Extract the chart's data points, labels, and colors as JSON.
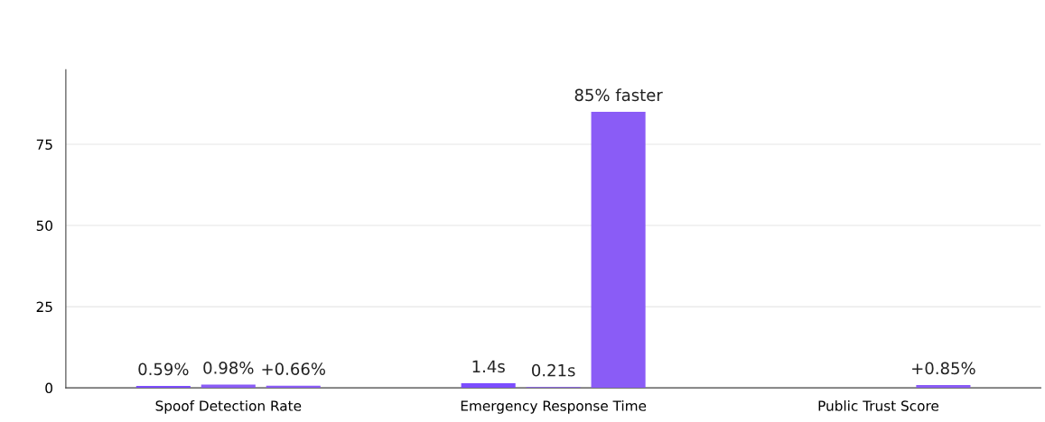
{
  "chart_data": {
    "type": "bar",
    "categories": [
      "Spoof Detection Rate",
      "Emergency Response Time",
      "Public Trust Score"
    ],
    "series": [
      {
        "color": "#7c4dff",
        "values": [
          0.59,
          1.4,
          null
        ],
        "value_labels": [
          "0.59%",
          "1.4s",
          null
        ]
      },
      {
        "color": "#8a5cf6",
        "values": [
          0.98,
          0.21,
          null
        ],
        "value_labels": [
          "0.98%",
          "0.21s",
          null
        ]
      },
      {
        "color": "#8a5cf6",
        "values": [
          0.66,
          85,
          0.85
        ],
        "value_labels": [
          "+0.66%",
          "85% faster",
          "+0.85%"
        ]
      }
    ],
    "ylim": [
      0,
      98
    ],
    "yticks": [
      0,
      25,
      50,
      75
    ],
    "grid": "y",
    "legend": false
  }
}
